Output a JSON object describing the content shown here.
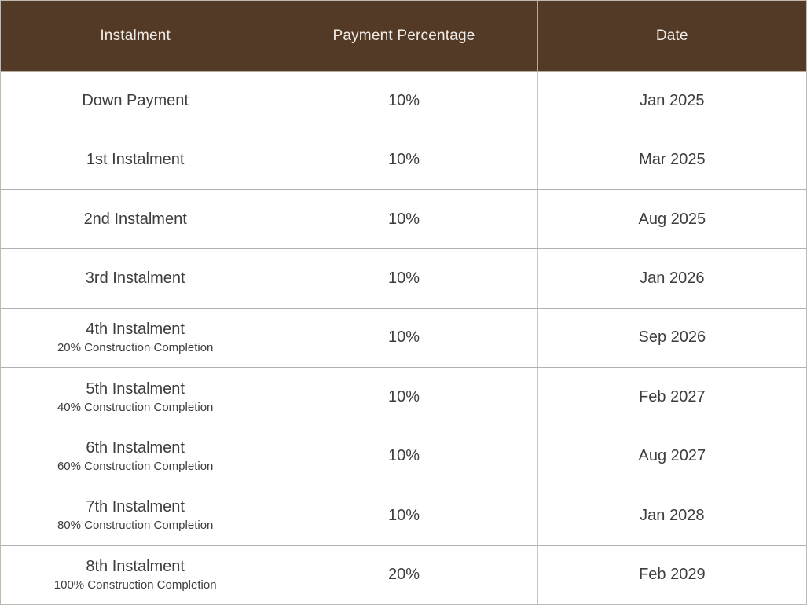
{
  "chart_data": {
    "type": "table",
    "columns": [
      "Instalment",
      "Payment Percentage",
      "Date"
    ],
    "rows": [
      [
        "Down Payment",
        "10%",
        "Jan 2025"
      ],
      [
        "1st Instalment",
        "10%",
        "Mar 2025"
      ],
      [
        "2nd Instalment",
        "10%",
        "Aug 2025"
      ],
      [
        "3rd Instalment",
        "10%",
        "Jan 2026"
      ],
      [
        "4th Instalment (20% Construction Completion)",
        "10%",
        "Sep 2026"
      ],
      [
        "5th Instalment (40% Construction Completion)",
        "10%",
        "Feb 2027"
      ],
      [
        "6th Instalment (60% Construction Completion)",
        "10%",
        "Aug 2027"
      ],
      [
        "7th Instalment (80% Construction Completion)",
        "10%",
        "Jan 2028"
      ],
      [
        "8th Instalment (100% Construction Completion)",
        "20%",
        "Feb 2029"
      ]
    ]
  },
  "table": {
    "columns": [
      {
        "label": "Instalment"
      },
      {
        "label": "Payment Percentage"
      },
      {
        "label": "Date"
      }
    ],
    "rows": [
      {
        "instalment": "Down Payment",
        "subtitle": "",
        "percentage": "10%",
        "date": "Jan 2025"
      },
      {
        "instalment": "1st Instalment",
        "subtitle": "",
        "percentage": "10%",
        "date": "Mar 2025"
      },
      {
        "instalment": "2nd Instalment",
        "subtitle": "",
        "percentage": "10%",
        "date": "Aug 2025"
      },
      {
        "instalment": "3rd Instalment",
        "subtitle": "",
        "percentage": "10%",
        "date": "Jan 2026"
      },
      {
        "instalment": "4th Instalment",
        "subtitle": "20% Construction Completion",
        "percentage": "10%",
        "date": "Sep 2026"
      },
      {
        "instalment": "5th Instalment",
        "subtitle": "40% Construction Completion",
        "percentage": "10%",
        "date": "Feb 2027"
      },
      {
        "instalment": "6th Instalment",
        "subtitle": "60% Construction Completion",
        "percentage": "10%",
        "date": "Aug 2027"
      },
      {
        "instalment": "7th Instalment",
        "subtitle": "80% Construction Completion",
        "percentage": "10%",
        "date": "Jan 2028"
      },
      {
        "instalment": "8th Instalment",
        "subtitle": "100% Construction Completion",
        "percentage": "20%",
        "date": "Feb 2029"
      }
    ],
    "colors": {
      "header_bg": "#533a27",
      "header_text": "#f1ece7",
      "header_divider": "#b5ab9d",
      "body_text": "#3d3d3d",
      "row_border": "#b1b1b1",
      "column_border": "#c6c6c6",
      "outer_border": "#bdb8b0"
    }
  }
}
